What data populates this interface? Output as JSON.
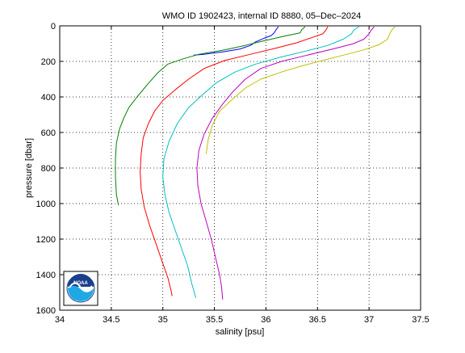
{
  "chart_data": {
    "type": "line",
    "title": "WMO ID 1902423, internal ID 8880, 05–Dec–2024",
    "xlabel": "salinity [psu]",
    "ylabel": "pressure [dbar]",
    "xlim": [
      34,
      37.5
    ],
    "ylim": [
      0,
      1600
    ],
    "y_inverted": true,
    "grid": true,
    "grid_style": "dotted",
    "x_ticks": [
      34,
      34.5,
      35,
      35.5,
      36,
      36.5,
      37,
      37.5
    ],
    "x_tick_labels": [
      "34",
      "34.5",
      "35",
      "35.5",
      "36",
      "36.5",
      "37",
      "37.5"
    ],
    "y_ticks": [
      0,
      200,
      400,
      600,
      800,
      1000,
      1200,
      1400,
      1600
    ],
    "y_tick_labels": [
      "0",
      "200",
      "400",
      "600",
      "800",
      "1000",
      "1200",
      "1400",
      "1600"
    ],
    "series": [
      {
        "color": "#0000ff",
        "points": [
          [
            36.12,
            5
          ],
          [
            36.1,
            20
          ],
          [
            36.08,
            40
          ],
          [
            36.05,
            55
          ],
          [
            35.98,
            70
          ],
          [
            35.9,
            90
          ],
          [
            35.85,
            110
          ],
          [
            35.75,
            130
          ],
          [
            35.6,
            145
          ],
          [
            35.4,
            160
          ],
          [
            35.3,
            165
          ]
        ]
      },
      {
        "color": "#008000",
        "points": [
          [
            36.38,
            5
          ],
          [
            36.35,
            20
          ],
          [
            36.33,
            40
          ],
          [
            36.2,
            55
          ],
          [
            36.05,
            75
          ],
          [
            35.9,
            95
          ],
          [
            35.8,
            110
          ],
          [
            35.6,
            135
          ],
          [
            35.35,
            160
          ],
          [
            35.2,
            185
          ],
          [
            35.05,
            215
          ],
          [
            34.95,
            265
          ],
          [
            34.85,
            330
          ],
          [
            34.75,
            400
          ],
          [
            34.67,
            460
          ],
          [
            34.62,
            520
          ],
          [
            34.58,
            580
          ],
          [
            34.55,
            660
          ],
          [
            34.54,
            750
          ],
          [
            34.54,
            850
          ],
          [
            34.55,
            950
          ],
          [
            34.57,
            1010
          ]
        ]
      },
      {
        "color": "#ff0000",
        "points": [
          [
            36.6,
            5
          ],
          [
            36.58,
            25
          ],
          [
            36.55,
            45
          ],
          [
            36.45,
            65
          ],
          [
            36.3,
            95
          ],
          [
            36.1,
            125
          ],
          [
            35.85,
            160
          ],
          [
            35.6,
            195
          ],
          [
            35.4,
            240
          ],
          [
            35.25,
            300
          ],
          [
            35.12,
            360
          ],
          [
            35.0,
            420
          ],
          [
            34.92,
            480
          ],
          [
            34.86,
            550
          ],
          [
            34.81,
            630
          ],
          [
            34.79,
            720
          ],
          [
            34.78,
            820
          ],
          [
            34.79,
            920
          ],
          [
            34.82,
            1020
          ],
          [
            34.87,
            1120
          ],
          [
            34.93,
            1220
          ],
          [
            34.99,
            1320
          ],
          [
            35.05,
            1420
          ],
          [
            35.08,
            1490
          ],
          [
            35.09,
            1520
          ]
        ]
      },
      {
        "color": "#00bfbf",
        "points": [
          [
            36.9,
            5
          ],
          [
            36.85,
            25
          ],
          [
            36.83,
            45
          ],
          [
            36.75,
            75
          ],
          [
            36.6,
            110
          ],
          [
            36.4,
            140
          ],
          [
            36.15,
            175
          ],
          [
            35.9,
            215
          ],
          [
            35.7,
            260
          ],
          [
            35.52,
            320
          ],
          [
            35.38,
            390
          ],
          [
            35.25,
            460
          ],
          [
            35.14,
            550
          ],
          [
            35.06,
            650
          ],
          [
            35.01,
            750
          ],
          [
            35.0,
            850
          ],
          [
            35.02,
            950
          ],
          [
            35.06,
            1050
          ],
          [
            35.12,
            1150
          ],
          [
            35.18,
            1250
          ],
          [
            35.24,
            1350
          ],
          [
            35.28,
            1450
          ],
          [
            35.32,
            1530
          ]
        ]
      },
      {
        "color": "#bf00bf",
        "points": [
          [
            37.05,
            5
          ],
          [
            37.02,
            25
          ],
          [
            37.0,
            45
          ],
          [
            36.95,
            75
          ],
          [
            36.85,
            100
          ],
          [
            36.65,
            130
          ],
          [
            36.4,
            165
          ],
          [
            36.15,
            200
          ],
          [
            35.95,
            240
          ],
          [
            35.8,
            300
          ],
          [
            35.68,
            370
          ],
          [
            35.58,
            440
          ],
          [
            35.48,
            520
          ],
          [
            35.4,
            610
          ],
          [
            35.35,
            700
          ],
          [
            35.33,
            800
          ],
          [
            35.34,
            900
          ],
          [
            35.37,
            1000
          ],
          [
            35.42,
            1100
          ],
          [
            35.47,
            1200
          ],
          [
            35.51,
            1300
          ],
          [
            35.55,
            1400
          ],
          [
            35.57,
            1470
          ],
          [
            35.58,
            1540
          ]
        ]
      },
      {
        "color": "#bfbf00",
        "points": [
          [
            37.25,
            5
          ],
          [
            37.22,
            25
          ],
          [
            37.2,
            45
          ],
          [
            37.18,
            75
          ],
          [
            37.1,
            105
          ],
          [
            36.95,
            135
          ],
          [
            36.75,
            165
          ],
          [
            36.55,
            195
          ],
          [
            36.35,
            225
          ],
          [
            36.15,
            260
          ],
          [
            35.95,
            300
          ],
          [
            35.8,
            350
          ],
          [
            35.68,
            410
          ],
          [
            35.55,
            480
          ],
          [
            35.48,
            560
          ],
          [
            35.44,
            640
          ],
          [
            35.42,
            720
          ]
        ]
      }
    ]
  },
  "logo": {
    "text": "NOAA",
    "color_sky": "#1a3f8c",
    "color_sea": "#1ea9e6"
  }
}
